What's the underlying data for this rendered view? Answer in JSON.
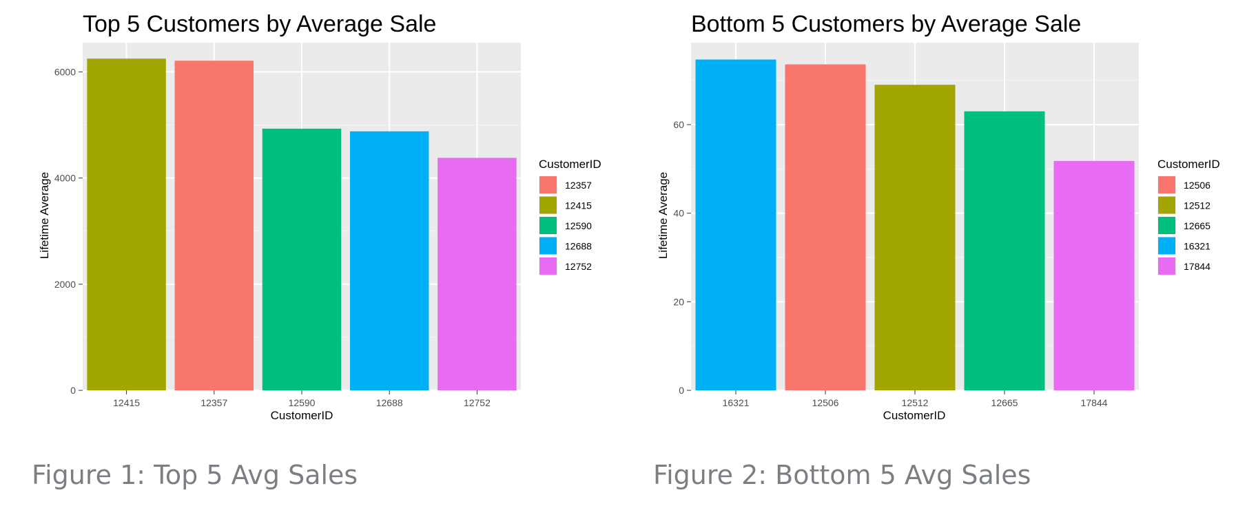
{
  "chart_data": [
    {
      "type": "bar",
      "title": "Top 5 Customers by Average Sale",
      "xlabel": "CustomerID",
      "ylabel": "Lifetime Average",
      "categories": [
        "12415",
        "12357",
        "12590",
        "12688",
        "12752"
      ],
      "values": [
        6250,
        6210,
        4930,
        4880,
        4380
      ],
      "bar_colors": [
        "#A3A500",
        "#F8766D",
        "#00BF7D",
        "#00B0F6",
        "#E76BF3"
      ],
      "ylim": [
        0,
        6550
      ],
      "yticks": [
        0,
        2000,
        4000,
        6000
      ],
      "grid": true,
      "legend": {
        "title": "CustomerID",
        "position": "right",
        "items": [
          {
            "label": "12357",
            "color": "#F8766D"
          },
          {
            "label": "12415",
            "color": "#A3A500"
          },
          {
            "label": "12590",
            "color": "#00BF7D"
          },
          {
            "label": "12688",
            "color": "#00B0F6"
          },
          {
            "label": "12752",
            "color": "#E76BF3"
          }
        ]
      }
    },
    {
      "type": "bar",
      "title": "Bottom 5 Customers by Average Sale",
      "xlabel": "CustomerID",
      "ylabel": "Lifetime Average",
      "categories": [
        "16321",
        "12506",
        "12512",
        "12665",
        "17844"
      ],
      "values": [
        74.7,
        73.6,
        69.0,
        63.0,
        51.8
      ],
      "bar_colors": [
        "#00B0F6",
        "#F8766D",
        "#A3A500",
        "#00BF7D",
        "#E76BF3"
      ],
      "ylim": [
        0,
        78.5
      ],
      "yticks": [
        0,
        20,
        40,
        60
      ],
      "grid": true,
      "legend": {
        "title": "CustomerID",
        "position": "right",
        "items": [
          {
            "label": "12506",
            "color": "#F8766D"
          },
          {
            "label": "12512",
            "color": "#A3A500"
          },
          {
            "label": "12665",
            "color": "#00BF7D"
          },
          {
            "label": "16321",
            "color": "#00B0F6"
          },
          {
            "label": "17844",
            "color": "#E76BF3"
          }
        ]
      }
    }
  ],
  "captions": [
    "Figure 1: Top 5 Avg Sales",
    "Figure 2: Bottom 5 Avg Sales"
  ]
}
